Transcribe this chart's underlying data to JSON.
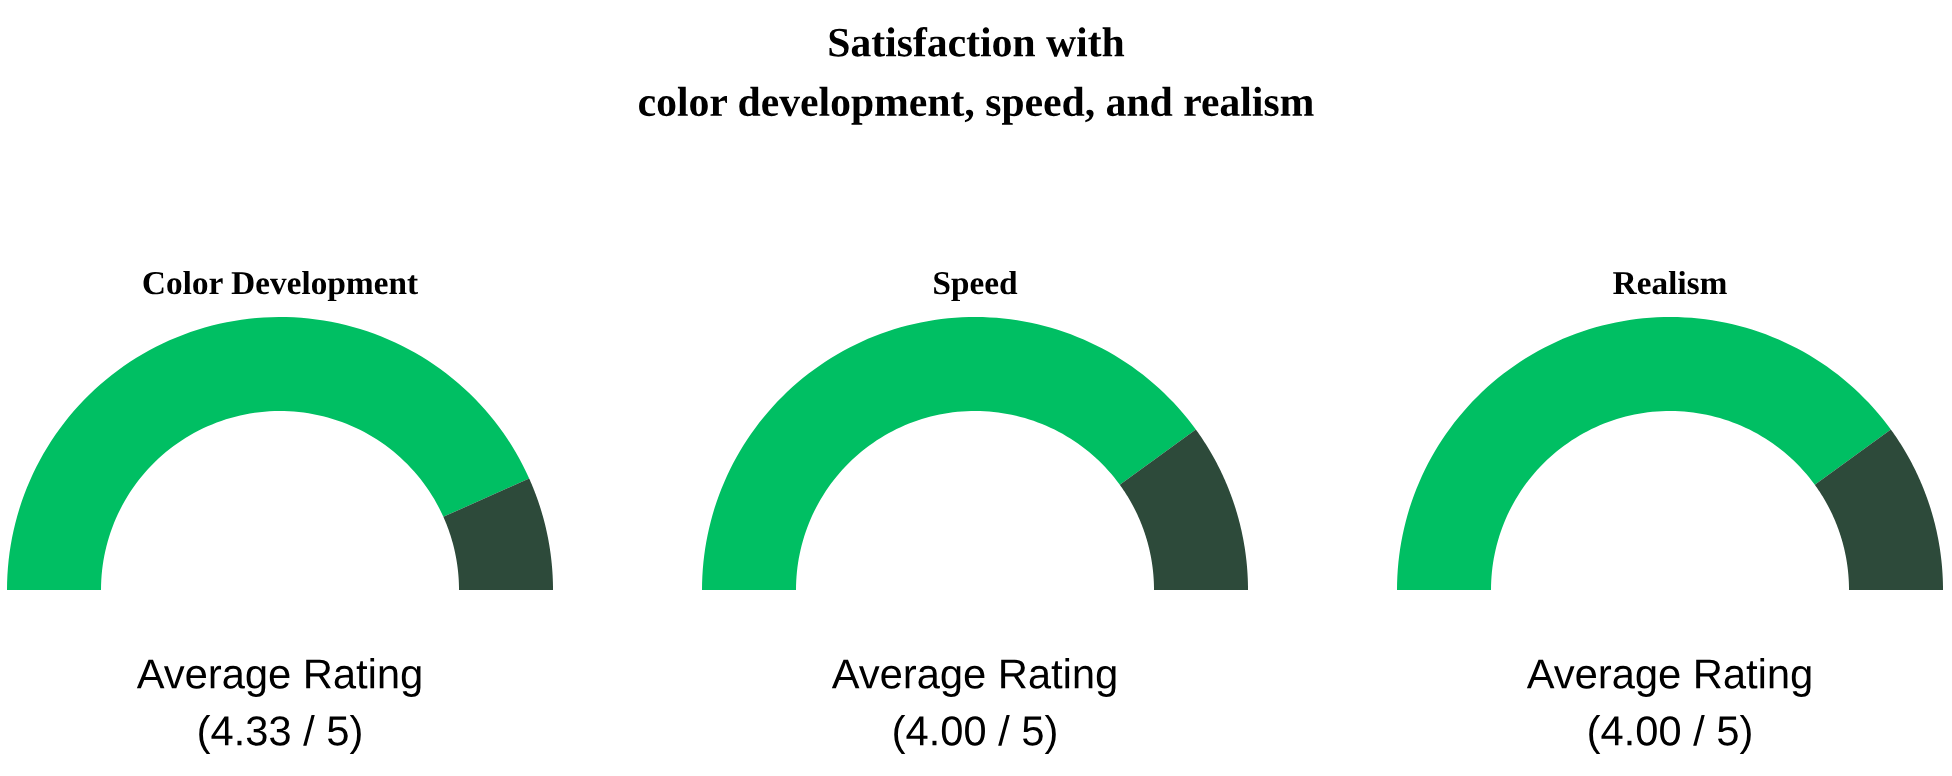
{
  "chart_data": [
    {
      "type": "other",
      "title": "Satisfaction with\ncolor development, speed, and realism"
    },
    {
      "type": "donut",
      "title": "Color Development",
      "categories": [
        null,
        null
      ],
      "values": [
        86.6,
        13.4
      ],
      "colors": [
        "#00bf63",
        "#2d4a3a"
      ],
      "annotations": [
        "Average Rating\n(4.33 / 5)"
      ]
    },
    {
      "type": "donut",
      "title": "Speed",
      "categories": [
        null,
        null
      ],
      "values": [
        80,
        20
      ],
      "colors": [
        "#00bf63",
        "#2d4a3a"
      ],
      "annotations": [
        "Average Rating\n(4.00 / 5)"
      ]
    },
    {
      "type": "donut",
      "title": "Realism",
      "categories": [
        null,
        null
      ],
      "values": [
        80,
        20
      ],
      "colors": [
        "#00bf63",
        "#2d4a3a"
      ],
      "annotations": [
        "Average Rating\n(4.00 / 5)"
      ]
    }
  ]
}
